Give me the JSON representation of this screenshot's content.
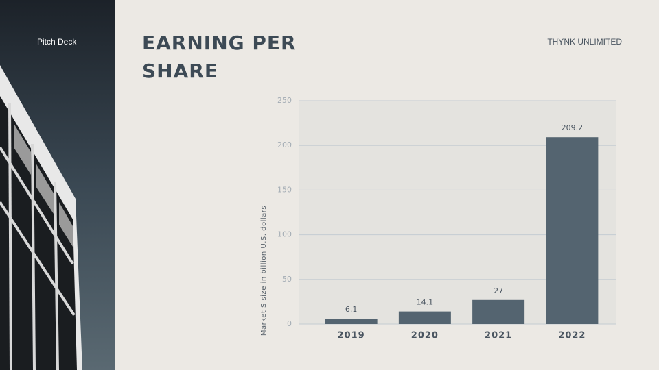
{
  "header": {
    "label": "Pitch Deck",
    "brand": "THYNK UNLIMITED"
  },
  "chart_data": {
    "type": "bar",
    "title": "EARNING PER SHARE",
    "y_label": "Market S size in billion U.S. dollars",
    "categories": [
      "2019",
      "2020",
      "2021",
      "2022"
    ],
    "values": [
      6.1,
      14.1,
      27,
      209.2
    ],
    "color": "#546470",
    "ylim": [
      0,
      250
    ],
    "yticks": [
      0,
      50,
      100,
      150,
      200,
      250
    ],
    "grid": true
  }
}
